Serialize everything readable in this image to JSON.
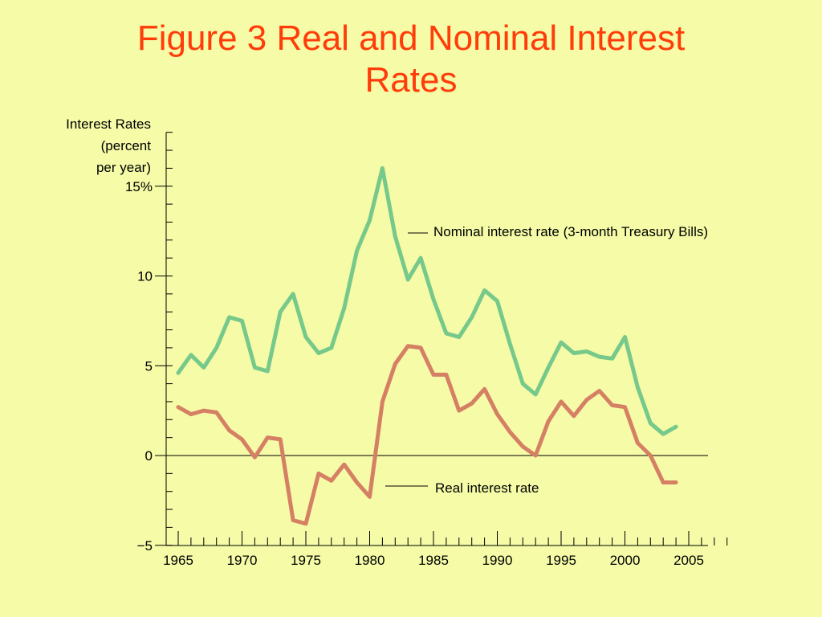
{
  "chart_data": {
    "type": "line",
    "title_line1": "Figure 3 Real and Nominal Interest",
    "title_line2": "Rates",
    "ylabel_lines": [
      "Interest Rates",
      "(percent",
      "per year)"
    ],
    "ylim": [
      -5,
      18
    ],
    "xlim": [
      1964,
      2008
    ],
    "y_ticks": [
      {
        "value": 15,
        "label": "15%"
      },
      {
        "value": 10,
        "label": "10"
      },
      {
        "value": 5,
        "label": "5"
      },
      {
        "value": 0,
        "label": "0"
      },
      {
        "value": -5,
        "label": "−5"
      }
    ],
    "x_ticks": [
      {
        "value": 1965,
        "label": "1965"
      },
      {
        "value": 1970,
        "label": "1970"
      },
      {
        "value": 1975,
        "label": "1975"
      },
      {
        "value": 1980,
        "label": "1980"
      },
      {
        "value": 1985,
        "label": "1985"
      },
      {
        "value": 1990,
        "label": "1990"
      },
      {
        "value": 1995,
        "label": "1995"
      },
      {
        "value": 2000,
        "label": "2000"
      },
      {
        "value": 2005,
        "label": "2005"
      }
    ],
    "x": [
      1965,
      1966,
      1967,
      1968,
      1969,
      1970,
      1971,
      1972,
      1973,
      1974,
      1975,
      1976,
      1977,
      1978,
      1979,
      1980,
      1981,
      1982,
      1983,
      1984,
      1985,
      1986,
      1987,
      1988,
      1989,
      1990,
      1991,
      1992,
      1993,
      1994,
      1995,
      1996,
      1997,
      1998,
      1999,
      2000,
      2001,
      2002,
      2003,
      2004,
      2005,
      2006
    ],
    "series": [
      {
        "name": "Nominal interest rate (3-month Treasury Bills)",
        "color": "#76c98a",
        "values": [
          4.6,
          5.6,
          4.9,
          6.0,
          7.7,
          7.5,
          4.9,
          4.7,
          8.0,
          9.0,
          6.6,
          5.7,
          6.0,
          8.2,
          11.4,
          13.1,
          16.0,
          12.2,
          9.8,
          11.0,
          8.7,
          6.8,
          6.6,
          7.7,
          9.2,
          8.6,
          6.2,
          4.0,
          3.4,
          4.9,
          6.3,
          5.7,
          5.8,
          5.5,
          5.4,
          6.6,
          3.8,
          1.8,
          1.2,
          1.6,
          null,
          null
        ]
      },
      {
        "name": "Real interest rate",
        "color": "#d58065",
        "values": [
          2.7,
          2.3,
          2.5,
          2.4,
          1.4,
          0.9,
          -0.1,
          1.0,
          0.9,
          -3.6,
          -3.8,
          -1.0,
          -1.4,
          -0.5,
          -1.5,
          -2.3,
          3.0,
          5.1,
          6.1,
          6.0,
          4.5,
          4.5,
          2.5,
          2.9,
          3.7,
          2.3,
          1.3,
          0.5,
          0.0,
          1.9,
          3.0,
          2.2,
          3.1,
          3.6,
          2.8,
          2.7,
          0.7,
          0.0,
          -1.5,
          -1.5,
          null,
          null
        ]
      }
    ],
    "annotations": [
      {
        "text": "Nominal interest rate (3-month Treasury Bills)",
        "series": 0
      },
      {
        "text": "Real interest rate",
        "series": 1
      }
    ],
    "grid": false
  }
}
